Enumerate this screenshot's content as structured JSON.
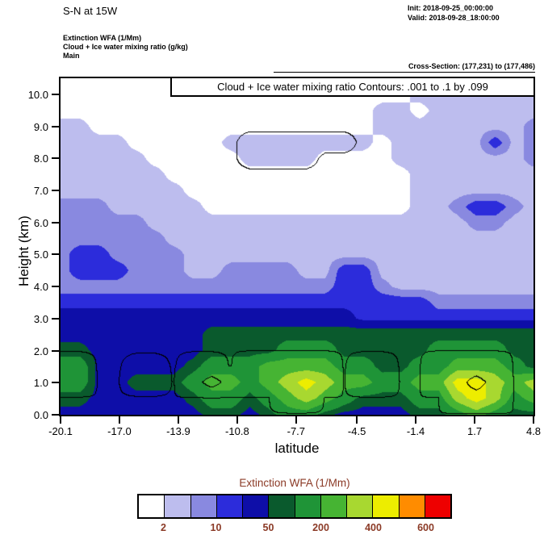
{
  "header": {
    "title": "S-N at 15W",
    "init": "Init: 2018-09-25_00:00:00",
    "valid": "Valid: 2018-09-28_18:00:00",
    "field_lines": [
      "Extinction WFA  (1/Mm)",
      "Cloud + Ice water mixing ratio   (g/kg)",
      "Main"
    ],
    "cross_section": "Cross-Section: (177,231) to (177,486)"
  },
  "plot": {
    "contour_note": "Cloud + Ice water mixing ratio Contours: .001 to .1 by .099",
    "ylabel": "Height (km)",
    "xlabel": "latitude"
  },
  "colorbar": {
    "title": "Extinction WFA  (1/Mm)",
    "units": "1/Mm",
    "text_color": "#8b3a26",
    "tick_labels": [
      "2",
      "10",
      "50",
      "200",
      "400",
      "600"
    ],
    "colors": [
      "#FFFFFF",
      "#BDBDEE",
      "#8989E0",
      "#2C2CDB",
      "#0E0EA8",
      "#0A5A2D",
      "#1F9437",
      "#46B433",
      "#A8D830",
      "#EDED00",
      "#FF8C00",
      "#EE0000"
    ]
  },
  "chart_data": {
    "type": "filled_contour",
    "description": "South-North vertical cross-section at 15W: filled contours of aerosol Extinction WFA (1/Mm) with black overlaid contours of cloud + ice water mixing ratio (g/kg) from .001 to .1 by .099",
    "x": {
      "label": "latitude",
      "min": -20.1,
      "max": 4.8,
      "ticks": [
        "-20.1",
        "-17.0",
        "-13.9",
        "-10.8",
        "-7.7",
        "-4.5",
        "-1.4",
        "1.7",
        "4.8"
      ]
    },
    "y": {
      "label": "Height (km)",
      "min": 0,
      "max": 10.5,
      "ticks": [
        "0.0",
        "1.0",
        "2.0",
        "3.0",
        "4.0",
        "5.0",
        "6.0",
        "7.0",
        "8.0",
        "9.0",
        "10.0"
      ]
    },
    "extinction": {
      "units": "1/Mm",
      "levels": [
        2,
        5,
        10,
        20,
        50,
        100,
        200,
        300,
        400,
        500,
        600
      ],
      "palette": [
        "#FFFFFF",
        "#BDBDEE",
        "#8989E0",
        "#2C2CDB",
        "#0E0EA8",
        "#0A5A2D",
        "#1F9437",
        "#46B433",
        "#A8D830",
        "#EDED00",
        "#FF8C00",
        "#EE0000"
      ],
      "grid": {
        "order": "rows from top (10.5 km) to bottom (0 km); columns from latitude -20.1 to 4.8",
        "values": [
          [
            1,
            1,
            1,
            1,
            1,
            1,
            1,
            1,
            1,
            1,
            1,
            1,
            1,
            1,
            1,
            1,
            1,
            1,
            1,
            1,
            1,
            3,
            3,
            3,
            3,
            3
          ],
          [
            1,
            1,
            1,
            1,
            1,
            1,
            1,
            1,
            1,
            1,
            1,
            1,
            1,
            1,
            1,
            1,
            1,
            1,
            1,
            3,
            3,
            3,
            3,
            3,
            3,
            3
          ],
          [
            1,
            1,
            1,
            1,
            1,
            1,
            1,
            1,
            1,
            1,
            1,
            1,
            1,
            1,
            1,
            1,
            1,
            3,
            3,
            1,
            3,
            3,
            3,
            3,
            3,
            3
          ],
          [
            3,
            3,
            1,
            1,
            1,
            1,
            1,
            1,
            1,
            1,
            1,
            1,
            1,
            1,
            1,
            1,
            1,
            3,
            3,
            3,
            3,
            3,
            3,
            3,
            3,
            7
          ],
          [
            3,
            3,
            3,
            3,
            1,
            1,
            1,
            1,
            1,
            3,
            3,
            3,
            3,
            3,
            3,
            3,
            3,
            1,
            3,
            3,
            3,
            3,
            3,
            14,
            3,
            7
          ],
          [
            3,
            3,
            3,
            3,
            3,
            1,
            1,
            1,
            1,
            1,
            3,
            3,
            3,
            3,
            1,
            1,
            1,
            1,
            3,
            3,
            3,
            3,
            3,
            3,
            3,
            7
          ],
          [
            3,
            3,
            3,
            3,
            3,
            3,
            1,
            1,
            1,
            1,
            1,
            1,
            1,
            1,
            1,
            1,
            1,
            1,
            1,
            3,
            3,
            3,
            3,
            3,
            3,
            3
          ],
          [
            3,
            3,
            3,
            3,
            3,
            3,
            3,
            1,
            1,
            1,
            1,
            1,
            1,
            1,
            1,
            1,
            1,
            1,
            1,
            3,
            3,
            3,
            3,
            3,
            3,
            3
          ],
          [
            7,
            7,
            7,
            3,
            3,
            3,
            3,
            3,
            1,
            1,
            1,
            1,
            1,
            1,
            1,
            1,
            1,
            1,
            1,
            3,
            3,
            7,
            14,
            14,
            7,
            3
          ],
          [
            7,
            7,
            7,
            7,
            7,
            3,
            3,
            3,
            3,
            3,
            3,
            3,
            3,
            3,
            3,
            3,
            3,
            3,
            3,
            3,
            3,
            3,
            7,
            7,
            3,
            3
          ],
          [
            7,
            7,
            7,
            7,
            7,
            7,
            3,
            3,
            3,
            3,
            3,
            3,
            3,
            3,
            3,
            3,
            3,
            3,
            3,
            3,
            3,
            3,
            3,
            3,
            3,
            3
          ],
          [
            7,
            14,
            14,
            7,
            7,
            7,
            7,
            3,
            3,
            3,
            3,
            3,
            3,
            3,
            3,
            3,
            3,
            3,
            3,
            3,
            3,
            3,
            3,
            3,
            3,
            3
          ],
          [
            7,
            14,
            14,
            14,
            7,
            7,
            7,
            3,
            3,
            7,
            7,
            7,
            7,
            3,
            3,
            14,
            14,
            3,
            3,
            3,
            3,
            3,
            3,
            3,
            3,
            3
          ],
          [
            7,
            7,
            7,
            7,
            7,
            7,
            7,
            7,
            7,
            7,
            7,
            7,
            7,
            7,
            7,
            14,
            14,
            7,
            3,
            3,
            3,
            3,
            3,
            3,
            3,
            3
          ],
          [
            14,
            14,
            14,
            14,
            14,
            14,
            14,
            14,
            14,
            14,
            14,
            14,
            14,
            14,
            14,
            14,
            14,
            14,
            14,
            14,
            7,
            7,
            7,
            7,
            7,
            7
          ],
          [
            30,
            30,
            30,
            30,
            30,
            30,
            30,
            30,
            30,
            30,
            30,
            30,
            30,
            30,
            30,
            30,
            14,
            14,
            14,
            14,
            14,
            14,
            14,
            14,
            14,
            14
          ],
          [
            30,
            30,
            30,
            30,
            30,
            30,
            30,
            30,
            70,
            70,
            70,
            70,
            70,
            70,
            70,
            70,
            70,
            70,
            70,
            70,
            70,
            70,
            70,
            70,
            70,
            70
          ],
          [
            70,
            70,
            30,
            30,
            30,
            30,
            30,
            30,
            70,
            70,
            70,
            70,
            150,
            150,
            150,
            70,
            70,
            70,
            70,
            70,
            150,
            150,
            150,
            150,
            70,
            70
          ],
          [
            150,
            150,
            30,
            30,
            30,
            30,
            30,
            70,
            150,
            150,
            150,
            250,
            250,
            250,
            250,
            150,
            150,
            70,
            70,
            150,
            150,
            250,
            250,
            250,
            150,
            70
          ],
          [
            150,
            150,
            30,
            30,
            70,
            70,
            70,
            150,
            250,
            250,
            150,
            250,
            350,
            450,
            350,
            250,
            250,
            150,
            150,
            250,
            250,
            450,
            450,
            350,
            250,
            350
          ],
          [
            70,
            70,
            30,
            30,
            30,
            30,
            30,
            70,
            150,
            150,
            70,
            150,
            250,
            350,
            250,
            150,
            70,
            70,
            70,
            150,
            150,
            350,
            450,
            350,
            150,
            250
          ],
          [
            30,
            30,
            30,
            30,
            30,
            30,
            30,
            30,
            70,
            70,
            30,
            70,
            150,
            150,
            70,
            30,
            30,
            30,
            30,
            70,
            70,
            150,
            250,
            150,
            70,
            70
          ]
        ]
      }
    },
    "cloud_contours": {
      "units": "g/kg",
      "levels": [
        0.001,
        0.1
      ],
      "label": "Cloud + Ice water mixing ratio Contours: .001 to .1 by .099",
      "values": [
        [
          0,
          0,
          0,
          0,
          0,
          0,
          0,
          0,
          0,
          0,
          0,
          0,
          0,
          0,
          0,
          0,
          0,
          0,
          0,
          0,
          0,
          0,
          0,
          0,
          0,
          0
        ],
        [
          0,
          0,
          0,
          0,
          0,
          0,
          0,
          0,
          0,
          0,
          0,
          0,
          0,
          0,
          0,
          0,
          0,
          0,
          0,
          0,
          0,
          0,
          0,
          0,
          0,
          0
        ],
        [
          0,
          0,
          0,
          0,
          0,
          0,
          0,
          0,
          0,
          0,
          0,
          0,
          0,
          0,
          0,
          0,
          0,
          0,
          0,
          0,
          0,
          0,
          0,
          0,
          0,
          0
        ],
        [
          0,
          0,
          0,
          0,
          0,
          0,
          0,
          0,
          0,
          0,
          0,
          0,
          0,
          0,
          0,
          0,
          0,
          0,
          0,
          0,
          0,
          0,
          0,
          0,
          0,
          0
        ],
        [
          0,
          0,
          0,
          0,
          0,
          0,
          0,
          0,
          0,
          0,
          0.003,
          0.003,
          0.003,
          0.003,
          0.003,
          0.003,
          0,
          0,
          0,
          0,
          0,
          0,
          0,
          0,
          0,
          0
        ],
        [
          0,
          0,
          0,
          0,
          0,
          0,
          0,
          0,
          0,
          0,
          0.003,
          0.003,
          0.003,
          0.003,
          0,
          0,
          0,
          0,
          0,
          0,
          0,
          0,
          0,
          0,
          0,
          0
        ],
        [
          0,
          0,
          0,
          0,
          0,
          0,
          0,
          0,
          0,
          0,
          0,
          0,
          0,
          0,
          0,
          0,
          0,
          0,
          0,
          0,
          0,
          0,
          0,
          0,
          0,
          0
        ],
        [
          0,
          0,
          0,
          0,
          0,
          0,
          0,
          0,
          0,
          0,
          0,
          0,
          0,
          0,
          0,
          0,
          0,
          0,
          0,
          0,
          0,
          0,
          0,
          0,
          0,
          0
        ],
        [
          0,
          0,
          0,
          0,
          0,
          0,
          0,
          0,
          0,
          0,
          0,
          0,
          0,
          0,
          0,
          0,
          0,
          0,
          0,
          0,
          0,
          0,
          0,
          0,
          0,
          0
        ],
        [
          0,
          0,
          0,
          0,
          0,
          0,
          0,
          0,
          0,
          0,
          0,
          0,
          0,
          0,
          0,
          0,
          0,
          0,
          0,
          0,
          0,
          0,
          0,
          0,
          0,
          0
        ],
        [
          0,
          0,
          0,
          0,
          0,
          0,
          0,
          0,
          0,
          0,
          0,
          0,
          0,
          0,
          0,
          0,
          0,
          0,
          0,
          0,
          0,
          0,
          0,
          0,
          0,
          0
        ],
        [
          0,
          0,
          0,
          0,
          0,
          0,
          0,
          0,
          0,
          0,
          0,
          0,
          0,
          0,
          0,
          0,
          0,
          0,
          0,
          0,
          0,
          0,
          0,
          0,
          0,
          0
        ],
        [
          0,
          0,
          0,
          0,
          0,
          0,
          0,
          0,
          0,
          0,
          0,
          0,
          0,
          0,
          0,
          0,
          0,
          0,
          0,
          0,
          0,
          0,
          0,
          0,
          0,
          0
        ],
        [
          0,
          0,
          0,
          0,
          0,
          0,
          0,
          0,
          0,
          0,
          0,
          0,
          0,
          0,
          0,
          0,
          0,
          0,
          0,
          0,
          0,
          0,
          0,
          0,
          0,
          0
        ],
        [
          0,
          0,
          0,
          0,
          0,
          0,
          0,
          0,
          0,
          0,
          0,
          0,
          0,
          0,
          0,
          0,
          0,
          0,
          0,
          0,
          0,
          0,
          0,
          0,
          0,
          0
        ],
        [
          0,
          0,
          0,
          0,
          0,
          0,
          0,
          0,
          0,
          0,
          0,
          0,
          0,
          0,
          0,
          0,
          0,
          0,
          0,
          0,
          0,
          0,
          0,
          0,
          0,
          0
        ],
        [
          0,
          0,
          0,
          0,
          0,
          0,
          0,
          0,
          0,
          0,
          0,
          0,
          0,
          0,
          0,
          0,
          0,
          0,
          0,
          0,
          0,
          0,
          0,
          0,
          0,
          0
        ],
        [
          0,
          0,
          0,
          0,
          0,
          0,
          0,
          0,
          0,
          0,
          0,
          0,
          0,
          0,
          0,
          0,
          0,
          0,
          0,
          0,
          0,
          0,
          0,
          0,
          0,
          0
        ],
        [
          0.01,
          0.01,
          0,
          0,
          0.005,
          0.005,
          0,
          0.01,
          0.01,
          0,
          0.02,
          0.02,
          0.02,
          0.02,
          0.02,
          0,
          0.01,
          0.01,
          0,
          0,
          0.02,
          0.02,
          0.02,
          0.02,
          0,
          0
        ],
        [
          0.02,
          0.02,
          0,
          0,
          0.01,
          0.01,
          0,
          0.05,
          0.15,
          0.05,
          0.05,
          0.05,
          0.05,
          0.05,
          0.05,
          0,
          0.02,
          0.02,
          0,
          0,
          0.05,
          0.05,
          0.15,
          0.05,
          0,
          0
        ],
        [
          0,
          0,
          0,
          0,
          0,
          0,
          0,
          0,
          0,
          0,
          0,
          0,
          0.02,
          0.02,
          0,
          0,
          0,
          0,
          0,
          0,
          0,
          0.05,
          0.05,
          0.05,
          0,
          0
        ],
        [
          0,
          0,
          0,
          0,
          0,
          0,
          0,
          0,
          0,
          0,
          0,
          0,
          0,
          0,
          0,
          0,
          0,
          0,
          0,
          0,
          0,
          0,
          0,
          0,
          0,
          0
        ]
      ]
    }
  }
}
